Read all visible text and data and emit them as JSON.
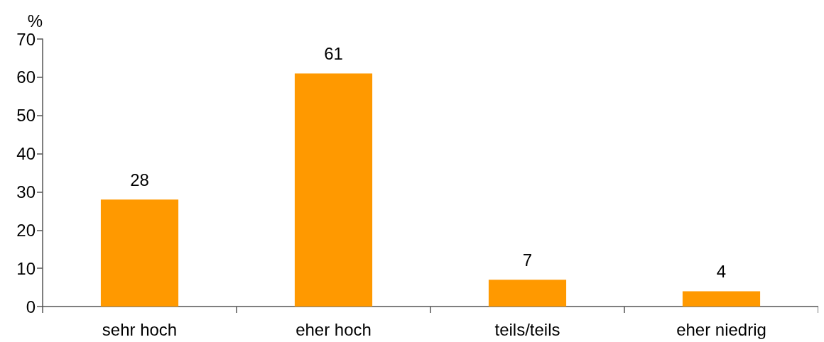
{
  "chart_data": {
    "type": "bar",
    "ylabel": "%",
    "categories": [
      "sehr hoch",
      "eher hoch",
      "teils/teils",
      "eher niedrig"
    ],
    "values": [
      28,
      61,
      7,
      4
    ],
    "color": "#ff9900",
    "ylim": [
      0,
      70
    ],
    "yticks": [
      0,
      10,
      20,
      30,
      40,
      50,
      60,
      70
    ],
    "grid": false,
    "data_labels": true
  }
}
